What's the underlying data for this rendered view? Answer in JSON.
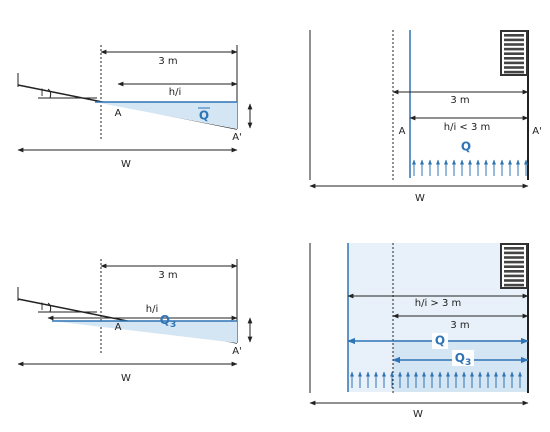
{
  "top_left": {
    "width_3m": "3 m",
    "hi": "h/i",
    "slope": "i",
    "point_a": "A",
    "flow": "Q",
    "point_a_prime": "A'",
    "width": "W"
  },
  "top_right": {
    "width_3m": "3 m",
    "hi": "h/i < 3 m",
    "point_a": "A",
    "flow": "Q",
    "point_a_prime": "A'",
    "width": "W"
  },
  "bottom_left": {
    "width_3m": "3 m",
    "hi": "h/i",
    "slope": "i",
    "point_a": "A",
    "flow": "Q",
    "flow_sub": "3",
    "point_a_prime": "A'",
    "width": "W"
  },
  "bottom_right": {
    "hi": "h/i > 3 m",
    "width_3m": "3 m",
    "flow": "Q",
    "flow3": "Q",
    "flow3_sub": "3",
    "width": "W"
  }
}
